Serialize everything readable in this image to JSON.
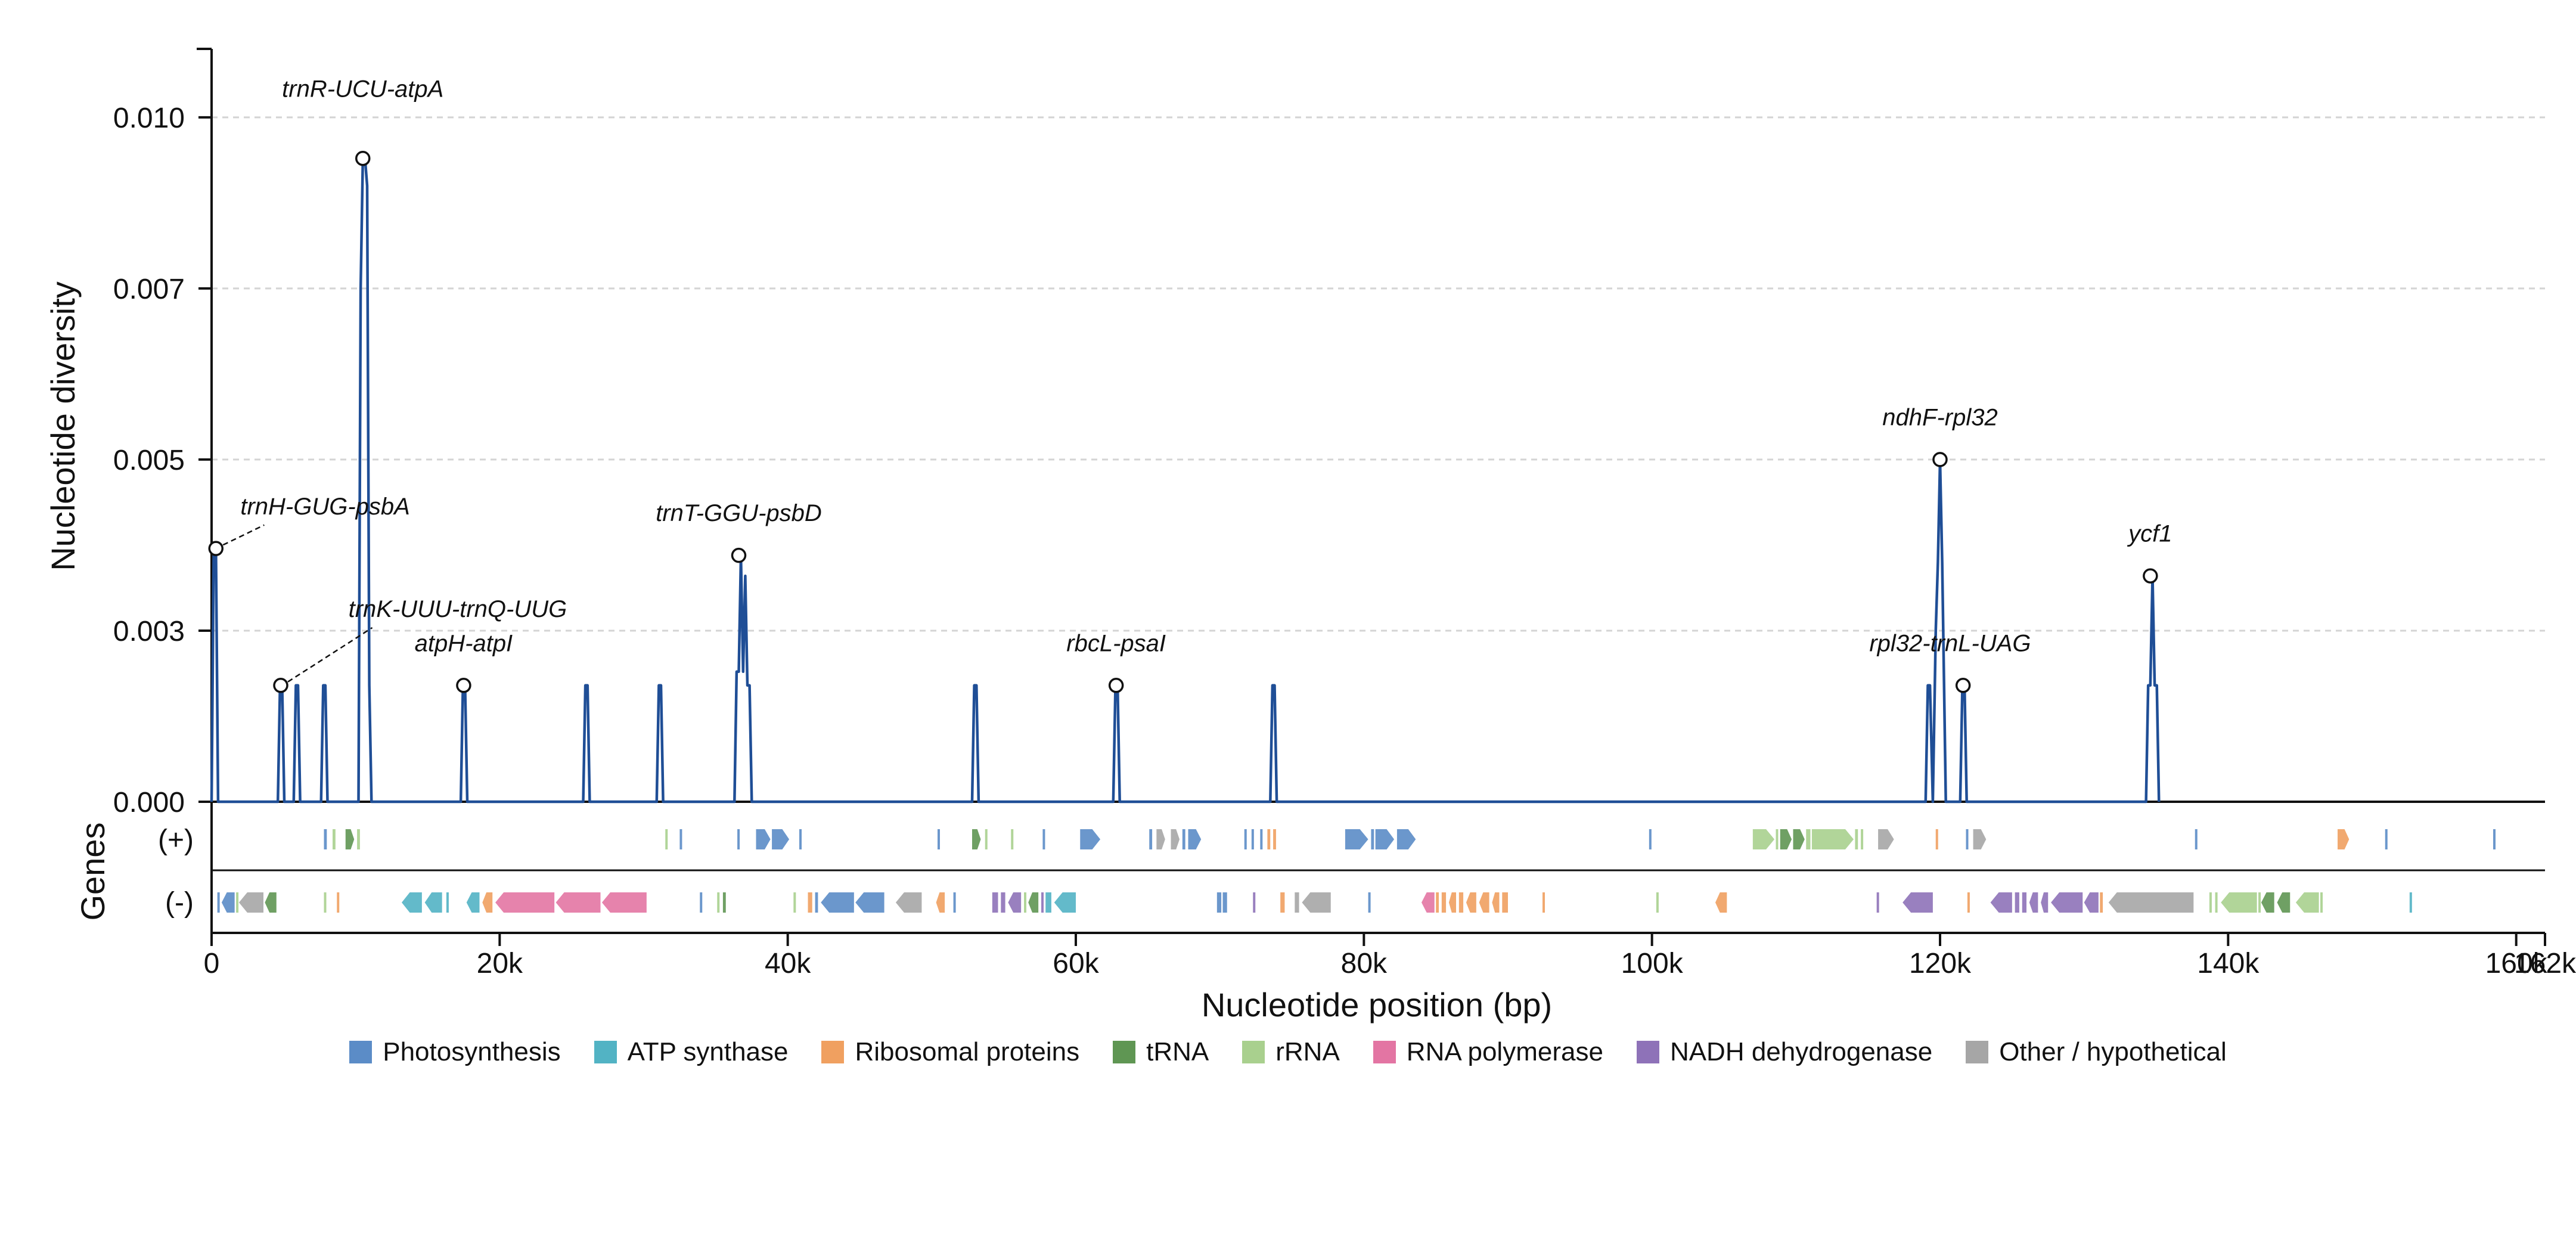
{
  "chart_data": {
    "type": "line",
    "xlabel": "Nucleotide position (bp)",
    "ylabel": "Nucleotide diversity",
    "track_label": "Genes",
    "strand_labels": [
      "(+)",
      "(-)"
    ],
    "xlim": [
      0,
      162000
    ],
    "ylim": [
      0,
      0.011
    ],
    "x_ticks": [
      {
        "value": 0,
        "label": "0"
      },
      {
        "value": 20000,
        "label": "20k"
      },
      {
        "value": 40000,
        "label": "40k"
      },
      {
        "value": 60000,
        "label": "60k"
      },
      {
        "value": 80000,
        "label": "80k"
      },
      {
        "value": 100000,
        "label": "100k"
      },
      {
        "value": 120000,
        "label": "120k"
      },
      {
        "value": 140000,
        "label": "140k"
      },
      {
        "value": 160000,
        "label": "160k"
      },
      {
        "value": 162000,
        "label": "162k"
      }
    ],
    "y_ticks": [
      {
        "value": 0,
        "label": "0.000"
      },
      {
        "value": 0.0025,
        "label": "0.003"
      },
      {
        "value": 0.005,
        "label": "0.005"
      },
      {
        "value": 0.0075,
        "label": "0.007"
      },
      {
        "value": 0.01,
        "label": "0.010"
      }
    ],
    "grid": "horizontal dashed",
    "line_color": "#1f4e96",
    "series": [
      {
        "x": [
          0,
          150,
          300,
          450,
          4600,
          4750,
          4900,
          5050,
          5700,
          5850,
          6000,
          6150,
          7600,
          7750,
          7900,
          8050,
          10200,
          10350,
          10500,
          10650,
          10800,
          10950,
          11100,
          17300,
          17450,
          17600,
          17750,
          25800,
          25950,
          26100,
          26250,
          30900,
          31050,
          31200,
          31350,
          36300,
          36450,
          36600,
          36750,
          36900,
          37050,
          37200,
          37350,
          37500,
          52800,
          52950,
          53100,
          53250,
          62600,
          62750,
          62900,
          63050,
          73500,
          73650,
          73800,
          73950,
          119000,
          119150,
          119300,
          119500,
          119700,
          119850,
          120000,
          120150,
          120400,
          120550,
          121400,
          121550,
          121700,
          121850,
          134300,
          134450,
          134600,
          134750,
          134900,
          135050,
          135200
        ],
        "y": [
          0,
          0.0037,
          0.0037,
          0,
          0,
          0.0017,
          0.0017,
          0,
          0,
          0.0017,
          0.0017,
          0,
          0,
          0.0017,
          0.0017,
          0,
          0,
          0.0075,
          0.0094,
          0.0094,
          0.009,
          0.0017,
          0,
          0,
          0.0017,
          0.0017,
          0,
          0,
          0.0017,
          0.0017,
          0,
          0,
          0.0017,
          0.0017,
          0,
          0,
          0.0019,
          0.0019,
          0.0036,
          0.0019,
          0.0033,
          0.0017,
          0.0017,
          0,
          0,
          0.0017,
          0.0017,
          0,
          0,
          0.0017,
          0.0017,
          0,
          0,
          0.0017,
          0.0017,
          0,
          0,
          0.0017,
          0.0017,
          0,
          0.0025,
          0.0035,
          0.005,
          0.0035,
          0,
          0,
          0,
          0.0017,
          0.0017,
          0,
          0,
          0.0017,
          0.0017,
          0.0033,
          0.0017,
          0.0017,
          0
        ]
      }
    ],
    "peaks": [
      {
        "label": "trnR-UCU-atpA",
        "x": 10500,
        "y": 0.0094,
        "label_x": 10500,
        "label_y": 0.0103,
        "leader": false
      },
      {
        "label": "trnH-GUG-psbA",
        "x": 300,
        "y": 0.0037,
        "label_x": 2000,
        "label_y": 0.0042,
        "leader": true
      },
      {
        "label": "trnT-GGU-psbD",
        "x": 36600,
        "y": 0.0036,
        "label_x": 36600,
        "label_y": 0.0041,
        "leader": false
      },
      {
        "label": "trnK-UUU-trnQ-UUG",
        "x": 4800,
        "y": 0.0017,
        "label_x": 9500,
        "label_y": 0.0027,
        "leader": true
      },
      {
        "label": "atpH-atpI",
        "x": 17500,
        "y": 0.0017,
        "label_x": 17500,
        "label_y": 0.0022,
        "leader": false
      },
      {
        "label": "rbcL-psaI",
        "x": 62800,
        "y": 0.0017,
        "label_x": 62800,
        "label_y": 0.0022,
        "leader": false
      },
      {
        "label": "ndhF-rpl32",
        "x": 120000,
        "y": 0.005,
        "label_x": 120000,
        "label_y": 0.0055,
        "leader": false
      },
      {
        "label": "rpl32-trnL-UAG",
        "x": 121600,
        "y": 0.0017,
        "label_x": 120700,
        "label_y": 0.0022,
        "leader": false
      },
      {
        "label": "ycf1",
        "x": 134600,
        "y": 0.0033,
        "label_x": 134600,
        "label_y": 0.0038,
        "leader": false
      }
    ],
    "gene_categories": [
      {
        "key": "photo",
        "name": "Photosynthesis",
        "color": "#5b8cc7"
      },
      {
        "key": "atp",
        "name": "ATP synthase",
        "color": "#52b3c4"
      },
      {
        "key": "ribo",
        "name": "Ribosomal proteins",
        "color": "#f0a060"
      },
      {
        "key": "trna",
        "name": "tRNA",
        "color": "#5f9653"
      },
      {
        "key": "rrna",
        "name": "rRNA",
        "color": "#a9d08e"
      },
      {
        "key": "rnap",
        "name": "RNA polymerase",
        "color": "#e375a3"
      },
      {
        "key": "ndh",
        "name": "NADH dehydrogenase",
        "color": "#8e72b8"
      },
      {
        "key": "other",
        "name": "Other / hypothetical",
        "color": "#a6a6a6"
      }
    ],
    "genes": [
      {
        "strand": "+",
        "start": 7800,
        "end": 8000,
        "cat": "photo"
      },
      {
        "strand": "+",
        "start": 8400,
        "end": 8600,
        "cat": "rrna"
      },
      {
        "strand": "+",
        "start": 9300,
        "end": 9900,
        "cat": "trna"
      },
      {
        "strand": "+",
        "start": 10100,
        "end": 10300,
        "cat": "rrna"
      },
      {
        "strand": "+",
        "start": 31500,
        "end": 31650,
        "cat": "rrna"
      },
      {
        "strand": "+",
        "start": 32500,
        "end": 32650,
        "cat": "photo"
      },
      {
        "strand": "+",
        "start": 36500,
        "end": 36650,
        "cat": "photo"
      },
      {
        "strand": "+",
        "start": 37800,
        "end": 38800,
        "cat": "photo"
      },
      {
        "strand": "+",
        "start": 38900,
        "end": 40100,
        "cat": "photo"
      },
      {
        "strand": "+",
        "start": 40800,
        "end": 40950,
        "cat": "photo"
      },
      {
        "strand": "+",
        "start": 50400,
        "end": 50550,
        "cat": "photo"
      },
      {
        "strand": "+",
        "start": 52800,
        "end": 53400,
        "cat": "trna"
      },
      {
        "strand": "+",
        "start": 53700,
        "end": 53850,
        "cat": "rrna"
      },
      {
        "strand": "+",
        "start": 55500,
        "end": 55650,
        "cat": "rrna"
      },
      {
        "strand": "+",
        "start": 57700,
        "end": 57850,
        "cat": "photo"
      },
      {
        "strand": "+",
        "start": 60300,
        "end": 61700,
        "cat": "photo"
      },
      {
        "strand": "+",
        "start": 65100,
        "end": 65300,
        "cat": "photo"
      },
      {
        "strand": "+",
        "start": 65600,
        "end": 66200,
        "cat": "other"
      },
      {
        "strand": "+",
        "start": 66600,
        "end": 67200,
        "cat": "other"
      },
      {
        "strand": "+",
        "start": 67400,
        "end": 67600,
        "cat": "photo"
      },
      {
        "strand": "+",
        "start": 67800,
        "end": 68700,
        "cat": "photo"
      },
      {
        "strand": "+",
        "start": 71700,
        "end": 71850,
        "cat": "photo"
      },
      {
        "strand": "+",
        "start": 72200,
        "end": 72350,
        "cat": "photo"
      },
      {
        "strand": "+",
        "start": 72800,
        "end": 72950,
        "cat": "photo"
      },
      {
        "strand": "+",
        "start": 73300,
        "end": 73500,
        "cat": "ribo"
      },
      {
        "strand": "+",
        "start": 73700,
        "end": 73900,
        "cat": "ribo"
      },
      {
        "strand": "+",
        "start": 78700,
        "end": 80300,
        "cat": "photo"
      },
      {
        "strand": "+",
        "start": 80500,
        "end": 80700,
        "cat": "photo"
      },
      {
        "strand": "+",
        "start": 80800,
        "end": 82100,
        "cat": "photo"
      },
      {
        "strand": "+",
        "start": 82300,
        "end": 83600,
        "cat": "photo"
      },
      {
        "strand": "+",
        "start": 99800,
        "end": 99950,
        "cat": "photo"
      },
      {
        "strand": "+",
        "start": 107000,
        "end": 108500,
        "cat": "rrna"
      },
      {
        "strand": "+",
        "start": 108600,
        "end": 108750,
        "cat": "rrna"
      },
      {
        "strand": "+",
        "start": 108900,
        "end": 109700,
        "cat": "trna"
      },
      {
        "strand": "+",
        "start": 109800,
        "end": 110600,
        "cat": "trna"
      },
      {
        "strand": "+",
        "start": 110700,
        "end": 111000,
        "cat": "rrna"
      },
      {
        "strand": "+",
        "start": 111100,
        "end": 114000,
        "cat": "rrna"
      },
      {
        "strand": "+",
        "start": 114100,
        "end": 114300,
        "cat": "rrna"
      },
      {
        "strand": "+",
        "start": 114500,
        "end": 114650,
        "cat": "rrna"
      },
      {
        "strand": "+",
        "start": 115700,
        "end": 116800,
        "cat": "other"
      },
      {
        "strand": "+",
        "start": 119700,
        "end": 119850,
        "cat": "ribo"
      },
      {
        "strand": "+",
        "start": 121800,
        "end": 121950,
        "cat": "photo"
      },
      {
        "strand": "+",
        "start": 122300,
        "end": 123200,
        "cat": "other"
      },
      {
        "strand": "+",
        "start": 137700,
        "end": 137850,
        "cat": "photo"
      },
      {
        "strand": "+",
        "start": 147600,
        "end": 148400,
        "cat": "ribo"
      },
      {
        "strand": "+",
        "start": 150900,
        "end": 151050,
        "cat": "photo"
      },
      {
        "strand": "+",
        "start": 158400,
        "end": 158550,
        "cat": "photo"
      },
      {
        "strand": "-",
        "start": 400,
        "end": 550,
        "cat": "photo"
      },
      {
        "strand": "-",
        "start": 700,
        "end": 1600,
        "cat": "photo"
      },
      {
        "strand": "-",
        "start": 1700,
        "end": 1850,
        "cat": "rrna"
      },
      {
        "strand": "-",
        "start": 1900,
        "end": 3600,
        "cat": "other"
      },
      {
        "strand": "-",
        "start": 3700,
        "end": 4500,
        "cat": "trna"
      },
      {
        "strand": "-",
        "start": 7800,
        "end": 7950,
        "cat": "rrna"
      },
      {
        "strand": "-",
        "start": 8700,
        "end": 8850,
        "cat": "ribo"
      },
      {
        "strand": "-",
        "start": 13200,
        "end": 14600,
        "cat": "atp"
      },
      {
        "strand": "-",
        "start": 14800,
        "end": 16000,
        "cat": "atp"
      },
      {
        "strand": "-",
        "start": 16300,
        "end": 16450,
        "cat": "atp"
      },
      {
        "strand": "-",
        "start": 17700,
        "end": 18600,
        "cat": "atp"
      },
      {
        "strand": "-",
        "start": 18800,
        "end": 19500,
        "cat": "ribo"
      },
      {
        "strand": "-",
        "start": 19700,
        "end": 23800,
        "cat": "rnap"
      },
      {
        "strand": "-",
        "start": 23900,
        "end": 27000,
        "cat": "rnap"
      },
      {
        "strand": "-",
        "start": 27100,
        "end": 30200,
        "cat": "rnap"
      },
      {
        "strand": "-",
        "start": 33900,
        "end": 34050,
        "cat": "photo"
      },
      {
        "strand": "-",
        "start": 35100,
        "end": 35250,
        "cat": "rrna"
      },
      {
        "strand": "-",
        "start": 35500,
        "end": 35700,
        "cat": "trna"
      },
      {
        "strand": "-",
        "start": 40400,
        "end": 40550,
        "cat": "rrna"
      },
      {
        "strand": "-",
        "start": 41400,
        "end": 41700,
        "cat": "ribo"
      },
      {
        "strand": "-",
        "start": 41900,
        "end": 42100,
        "cat": "photo"
      },
      {
        "strand": "-",
        "start": 42300,
        "end": 44600,
        "cat": "photo"
      },
      {
        "strand": "-",
        "start": 44700,
        "end": 46700,
        "cat": "photo"
      },
      {
        "strand": "-",
        "start": 47500,
        "end": 49300,
        "cat": "other"
      },
      {
        "strand": "-",
        "start": 50300,
        "end": 50900,
        "cat": "ribo"
      },
      {
        "strand": "-",
        "start": 51500,
        "end": 51650,
        "cat": "photo"
      },
      {
        "strand": "-",
        "start": 54200,
        "end": 54600,
        "cat": "ndh"
      },
      {
        "strand": "-",
        "start": 54800,
        "end": 55100,
        "cat": "ndh"
      },
      {
        "strand": "-",
        "start": 55300,
        "end": 56200,
        "cat": "ndh"
      },
      {
        "strand": "-",
        "start": 56400,
        "end": 56550,
        "cat": "rrna"
      },
      {
        "strand": "-",
        "start": 56700,
        "end": 57400,
        "cat": "trna"
      },
      {
        "strand": "-",
        "start": 57600,
        "end": 57750,
        "cat": "ndh"
      },
      {
        "strand": "-",
        "start": 57900,
        "end": 58300,
        "cat": "atp"
      },
      {
        "strand": "-",
        "start": 58500,
        "end": 60000,
        "cat": "atp"
      },
      {
        "strand": "-",
        "start": 69800,
        "end": 70100,
        "cat": "photo"
      },
      {
        "strand": "-",
        "start": 70200,
        "end": 70500,
        "cat": "photo"
      },
      {
        "strand": "-",
        "start": 72300,
        "end": 72450,
        "cat": "ndh"
      },
      {
        "strand": "-",
        "start": 74200,
        "end": 74500,
        "cat": "ribo"
      },
      {
        "strand": "-",
        "start": 75200,
        "end": 75500,
        "cat": "other"
      },
      {
        "strand": "-",
        "start": 75700,
        "end": 77700,
        "cat": "other"
      },
      {
        "strand": "-",
        "start": 80300,
        "end": 80450,
        "cat": "photo"
      },
      {
        "strand": "-",
        "start": 84000,
        "end": 84900,
        "cat": "rnap"
      },
      {
        "strand": "-",
        "start": 85000,
        "end": 85200,
        "cat": "ribo"
      },
      {
        "strand": "-",
        "start": 85400,
        "end": 85700,
        "cat": "ribo"
      },
      {
        "strand": "-",
        "start": 85900,
        "end": 86400,
        "cat": "ribo"
      },
      {
        "strand": "-",
        "start": 86600,
        "end": 86900,
        "cat": "ribo"
      },
      {
        "strand": "-",
        "start": 87100,
        "end": 87800,
        "cat": "ribo"
      },
      {
        "strand": "-",
        "start": 88000,
        "end": 88700,
        "cat": "ribo"
      },
      {
        "strand": "-",
        "start": 88900,
        "end": 89400,
        "cat": "ribo"
      },
      {
        "strand": "-",
        "start": 89600,
        "end": 90000,
        "cat": "ribo"
      },
      {
        "strand": "-",
        "start": 92400,
        "end": 92550,
        "cat": "ribo"
      },
      {
        "strand": "-",
        "start": 100300,
        "end": 100450,
        "cat": "rrna"
      },
      {
        "strand": "-",
        "start": 104400,
        "end": 105200,
        "cat": "ribo"
      },
      {
        "strand": "-",
        "start": 115600,
        "end": 115750,
        "cat": "ndh"
      },
      {
        "strand": "-",
        "start": 117400,
        "end": 119500,
        "cat": "ndh"
      },
      {
        "strand": "-",
        "start": 121900,
        "end": 122050,
        "cat": "ribo"
      },
      {
        "strand": "-",
        "start": 123500,
        "end": 125000,
        "cat": "ndh"
      },
      {
        "strand": "-",
        "start": 125200,
        "end": 125500,
        "cat": "ndh"
      },
      {
        "strand": "-",
        "start": 125700,
        "end": 126000,
        "cat": "ndh"
      },
      {
        "strand": "-",
        "start": 126200,
        "end": 126800,
        "cat": "ndh"
      },
      {
        "strand": "-",
        "start": 127000,
        "end": 127500,
        "cat": "ndh"
      },
      {
        "strand": "-",
        "start": 127700,
        "end": 129900,
        "cat": "ndh"
      },
      {
        "strand": "-",
        "start": 130000,
        "end": 131000,
        "cat": "ndh"
      },
      {
        "strand": "-",
        "start": 131100,
        "end": 131300,
        "cat": "ribo"
      },
      {
        "strand": "-",
        "start": 131700,
        "end": 137600,
        "cat": "other"
      },
      {
        "strand": "-",
        "start": 138700,
        "end": 138850,
        "cat": "rrna"
      },
      {
        "strand": "-",
        "start": 139100,
        "end": 139250,
        "cat": "rrna"
      },
      {
        "strand": "-",
        "start": 139500,
        "end": 142000,
        "cat": "rrna"
      },
      {
        "strand": "-",
        "start": 142100,
        "end": 142250,
        "cat": "rrna"
      },
      {
        "strand": "-",
        "start": 142300,
        "end": 143200,
        "cat": "trna"
      },
      {
        "strand": "-",
        "start": 143400,
        "end": 144300,
        "cat": "trna"
      },
      {
        "strand": "-",
        "start": 144700,
        "end": 146300,
        "cat": "rrna"
      },
      {
        "strand": "-",
        "start": 146400,
        "end": 146550,
        "cat": "rrna"
      },
      {
        "strand": "-",
        "start": 152600,
        "end": 152750,
        "cat": "atp"
      }
    ]
  }
}
